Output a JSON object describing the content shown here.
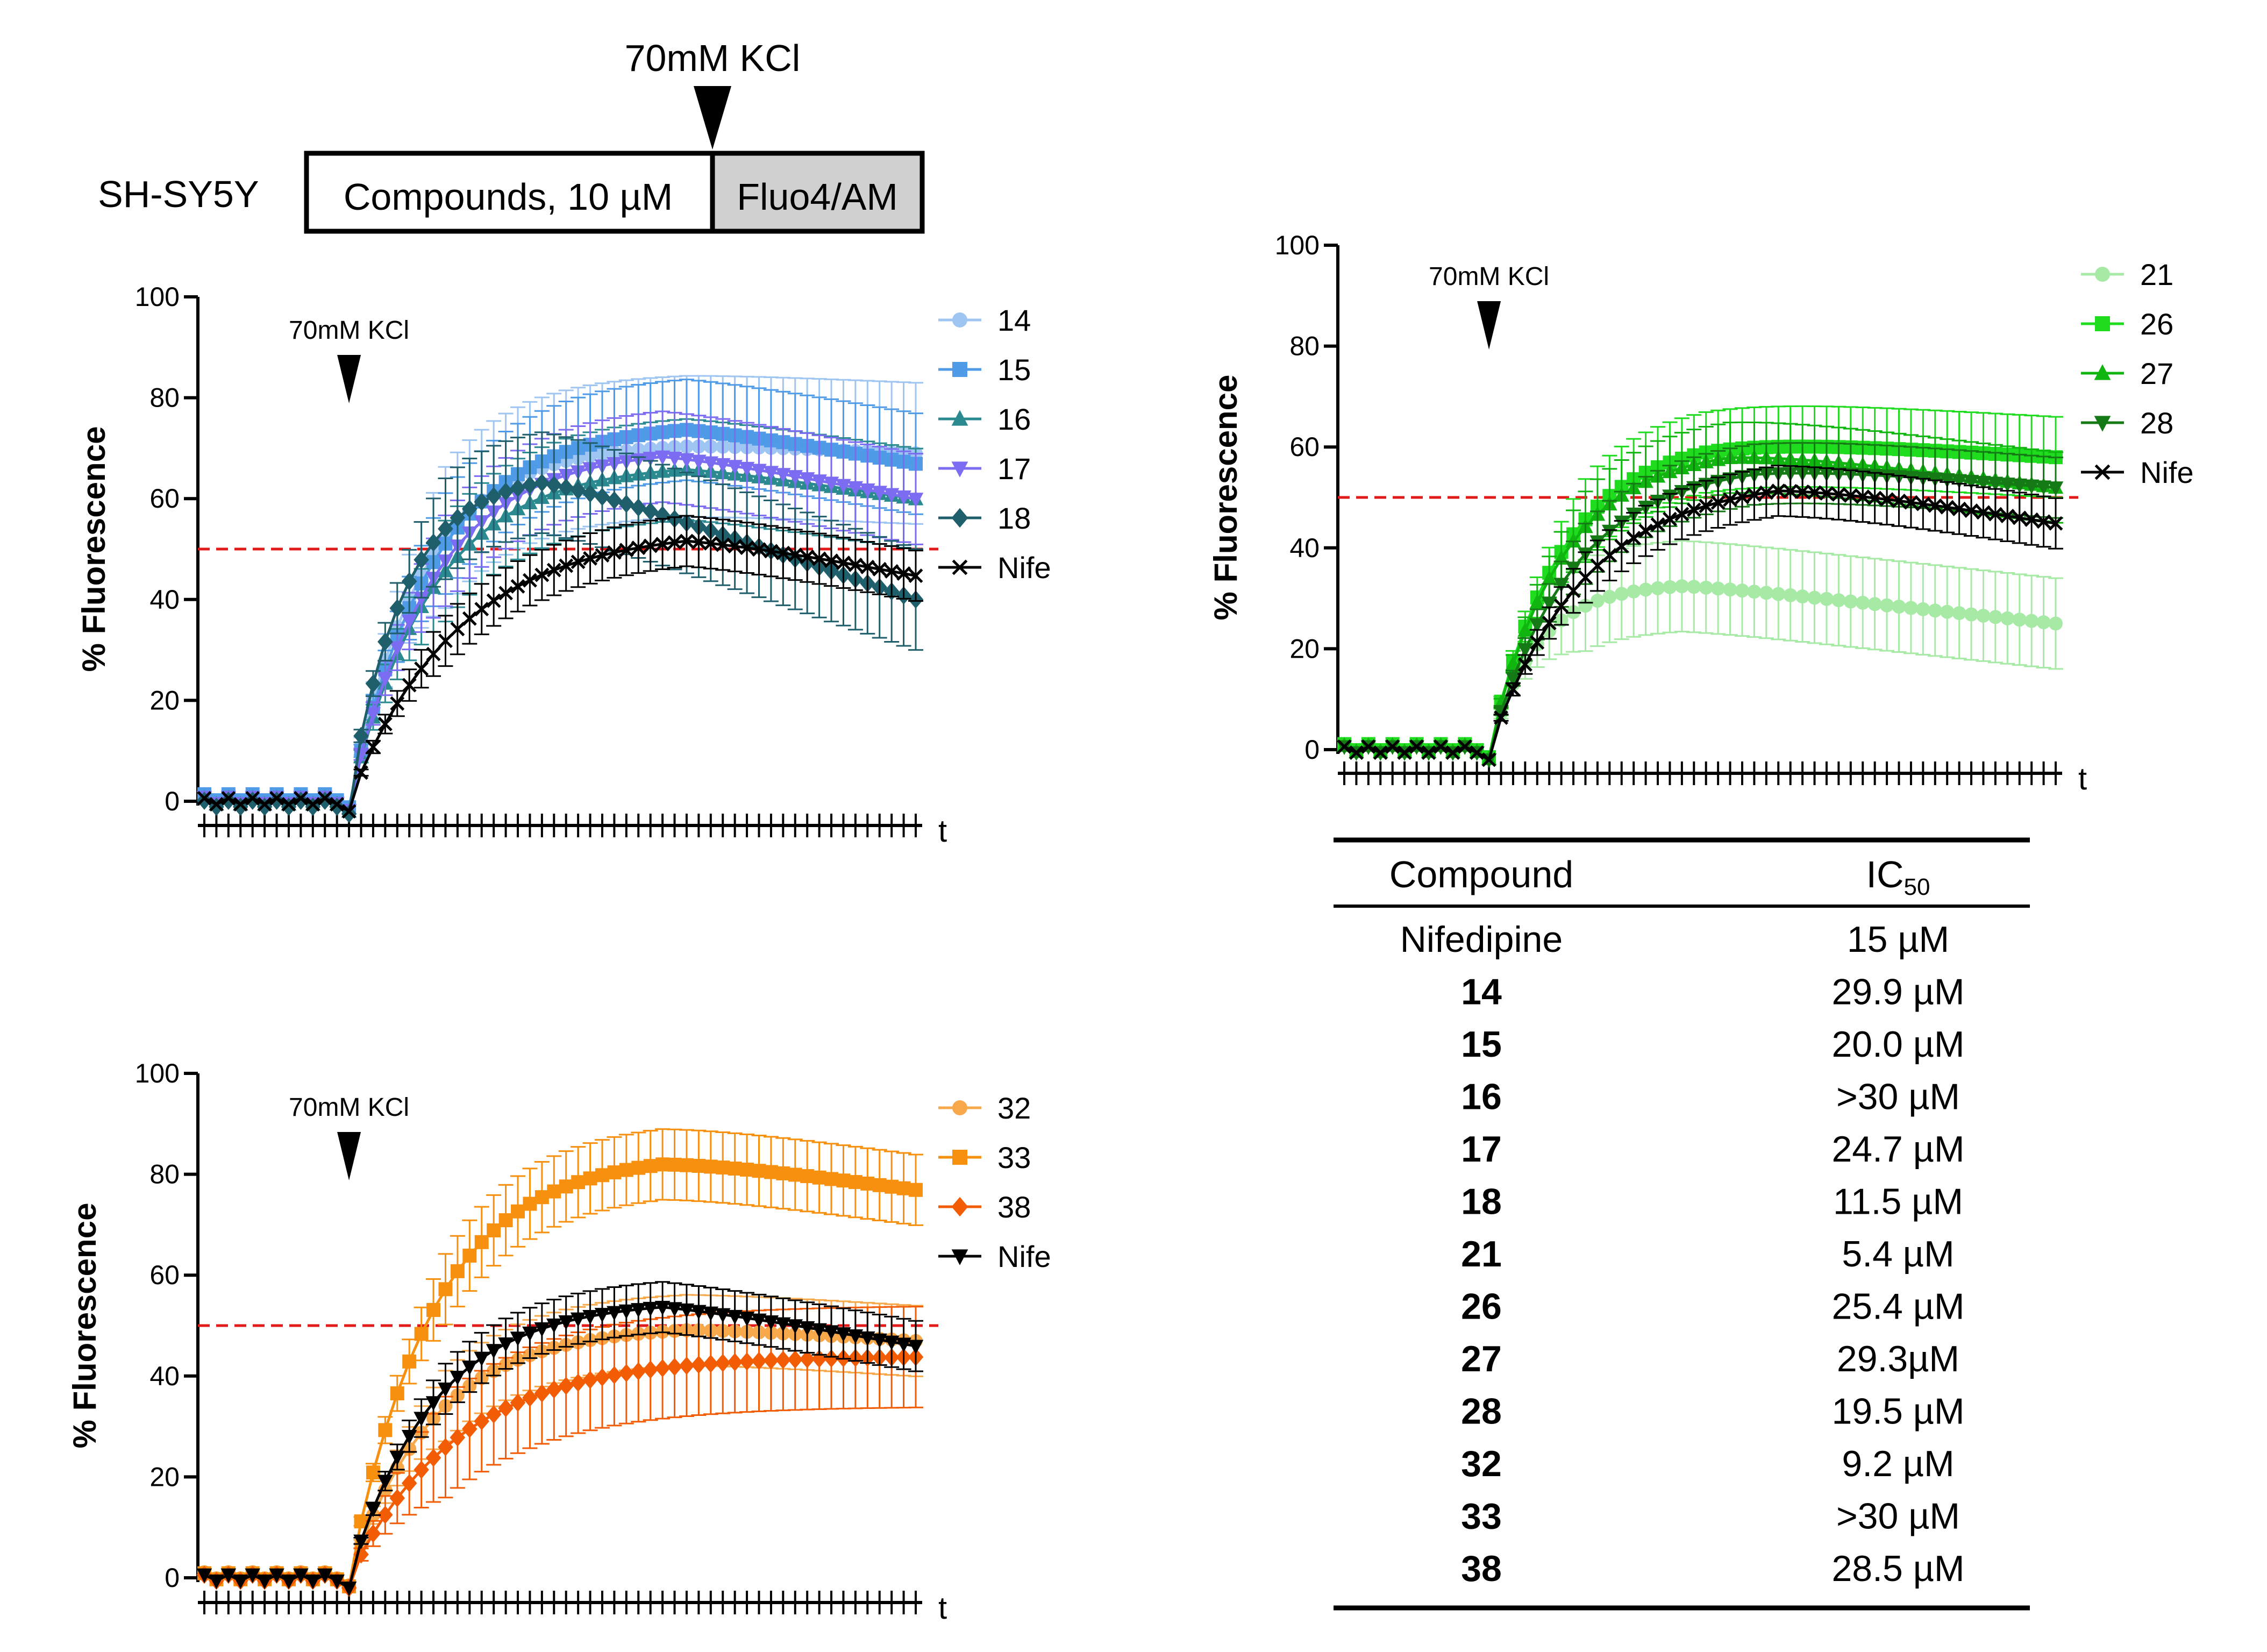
{
  "schematic": {
    "cell_line": "SH-SY5Y",
    "stage1": "Compounds, 10 µM",
    "stage2": "Fluo4/AM",
    "stimulus": "70mM KCl",
    "stage2_fill": "#d0d0d0"
  },
  "colors": {
    "threshold": "#e21a1a",
    "nife": "#000000"
  },
  "chart_data": [
    {
      "id": "panel-a",
      "type": "line",
      "title": "",
      "xlabel": "t",
      "ylabel": "% Fluorescence",
      "ylim": [
        0,
        100
      ],
      "yticks": [
        0,
        20,
        40,
        60,
        80,
        100
      ],
      "n_points": 60,
      "stimulus_index": 12,
      "stimulus_label": "70mM KCl",
      "threshold": 50,
      "series": [
        {
          "name": "14",
          "color": "#9fc5f2",
          "marker": "circle",
          "baseline": 0.5,
          "plateau": 71,
          "peak_index": 40,
          "decline": 2,
          "tau": 6,
          "error": 14
        },
        {
          "name": "15",
          "color": "#4f9be8",
          "marker": "square",
          "baseline": 0.8,
          "plateau": 75,
          "peak_index": 40,
          "decline": 8,
          "tau": 7,
          "error": 10
        },
        {
          "name": "16",
          "color": "#2a8a8f",
          "marker": "triangle-up",
          "baseline": 0,
          "plateau": 67,
          "peak_index": 40,
          "decline": 7,
          "tau": 7,
          "error": 10
        },
        {
          "name": "17",
          "color": "#7b6cf2",
          "marker": "triangle-down",
          "baseline": 0.2,
          "plateau": 70,
          "peak_index": 38,
          "decline": 10,
          "tau": 7,
          "error": 9
        },
        {
          "name": "18",
          "color": "#1f5e6b",
          "marker": "diamond",
          "baseline": -0.5,
          "plateau": 65,
          "peak_index": 28,
          "decline": 25,
          "tau": 4.5,
          "error": 10
        },
        {
          "name": "Nife",
          "color": "#000000",
          "marker": "x",
          "baseline": 0,
          "plateau": 54,
          "peak_index": 40,
          "decline": 9,
          "tau": 9,
          "error": 5
        }
      ]
    },
    {
      "id": "panel-b",
      "type": "line",
      "title": "",
      "xlabel": "t",
      "ylabel": "% Fluorescence",
      "ylim": [
        0,
        100
      ],
      "yticks": [
        0,
        20,
        40,
        60,
        80,
        100
      ],
      "n_points": 60,
      "stimulus_index": 12,
      "stimulus_label": "70mM KCl",
      "threshold": 50,
      "series": [
        {
          "name": "21",
          "color": "#a6eaa6",
          "marker": "circle",
          "baseline": 0.5,
          "plateau": 33,
          "peak_index": 28,
          "decline": 8,
          "tau": 4,
          "error": 9
        },
        {
          "name": "26",
          "color": "#1fdc1f",
          "marker": "square",
          "baseline": 0.5,
          "plateau": 62,
          "peak_index": 30,
          "decline": 4,
          "tau": 6,
          "error": 8
        },
        {
          "name": "27",
          "color": "#10b510",
          "marker": "triangle-up",
          "baseline": 0.2,
          "plateau": 60,
          "peak_index": 32,
          "decline": 8,
          "tau": 6,
          "error": 7
        },
        {
          "name": "28",
          "color": "#157a15",
          "marker": "triangle-down",
          "baseline": 0,
          "plateau": 57,
          "peak_index": 34,
          "decline": 5,
          "tau": 7,
          "error": 6
        },
        {
          "name": "Nife",
          "color": "#000000",
          "marker": "x",
          "baseline": 0,
          "plateau": 54,
          "peak_index": 36,
          "decline": 9,
          "tau": 8,
          "error": 5
        }
      ]
    },
    {
      "id": "panel-c",
      "type": "line",
      "title": "",
      "xlabel": "t",
      "ylabel": "% Fluorescence",
      "ylim": [
        0,
        100
      ],
      "yticks": [
        0,
        20,
        40,
        60,
        80,
        100
      ],
      "n_points": 60,
      "stimulus_index": 12,
      "stimulus_label": "70mM KCl",
      "threshold": 50,
      "series": [
        {
          "name": "32",
          "color": "#f7a84a",
          "marker": "circle",
          "baseline": 0.5,
          "plateau": 50,
          "peak_index": 40,
          "decline": 3,
          "tau": 7,
          "error": 7
        },
        {
          "name": "33",
          "color": "#f7900e",
          "marker": "square",
          "baseline": 0.3,
          "plateau": 84,
          "peak_index": 38,
          "decline": 7,
          "tau": 7,
          "error": 7
        },
        {
          "name": "38",
          "color": "#f25c05",
          "marker": "diamond",
          "baseline": 0,
          "plateau": 44,
          "peak_index": 38,
          "decline": 0,
          "tau": 9,
          "error": 10
        },
        {
          "name": "Nife",
          "color": "#000000",
          "marker": "triangle-down",
          "baseline": 0,
          "plateau": 55,
          "peak_index": 38,
          "decline": 9,
          "tau": 7,
          "error": 5
        }
      ]
    }
  ],
  "ic50_table": {
    "headers": {
      "compound": "Compound",
      "ic50_main": "IC",
      "ic50_sub": "50"
    },
    "rows": [
      {
        "compound": "Nifedipine",
        "value": "15 µM",
        "bold": false
      },
      {
        "compound": "14",
        "value": "29.9 µM",
        "bold": true
      },
      {
        "compound": "15",
        "value": "20.0 µM",
        "bold": true
      },
      {
        "compound": "16",
        "value": ">30 µM",
        "bold": true
      },
      {
        "compound": "17",
        "value": "24.7 µM",
        "bold": true
      },
      {
        "compound": "18",
        "value": "11.5 µM",
        "bold": true
      },
      {
        "compound": "21",
        "value": "5.4 µM",
        "bold": true
      },
      {
        "compound": "26",
        "value": "25.4 µM",
        "bold": true
      },
      {
        "compound": "27",
        "value": "29.3µM",
        "bold": true
      },
      {
        "compound": "28",
        "value": "19.5 µM",
        "bold": true
      },
      {
        "compound": "32",
        "value": "9.2 µM",
        "bold": true
      },
      {
        "compound": "33",
        "value": ">30 µM",
        "bold": true
      },
      {
        "compound": "38",
        "value": "28.5 µM",
        "bold": true
      }
    ]
  }
}
